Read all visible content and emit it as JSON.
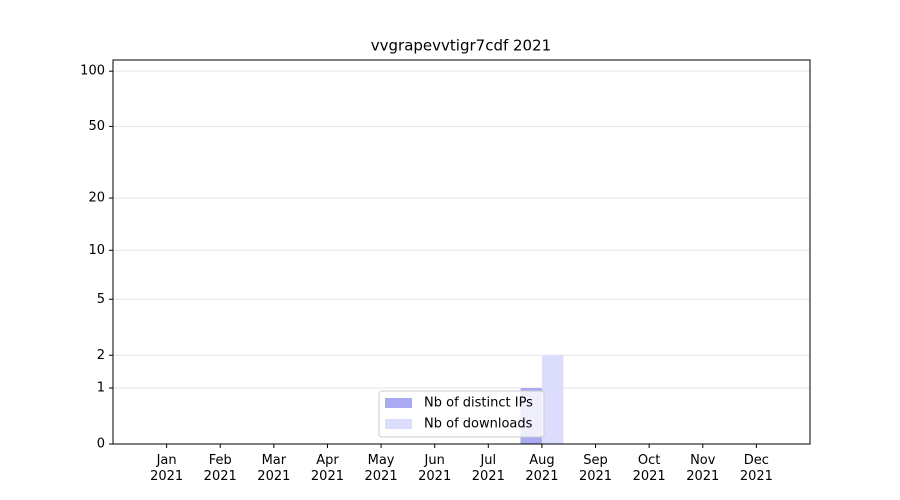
{
  "chart_data": {
    "type": "bar",
    "title": "vvgrapevvtigr7cdf 2021",
    "scale": "log1p",
    "categories": [
      "Jan\n2021",
      "Feb\n2021",
      "Mar\n2021",
      "Apr\n2021",
      "May\n2021",
      "Jun\n2021",
      "Jul\n2021",
      "Aug\n2021",
      "Sep\n2021",
      "Oct\n2021",
      "Nov\n2021",
      "Dec\n2021"
    ],
    "series": [
      {
        "name": "Nb of distinct IPs",
        "color": "#aaaaf2",
        "values": [
          0,
          0,
          0,
          0,
          0,
          0,
          0,
          1,
          0,
          0,
          0,
          0
        ]
      },
      {
        "name": "Nb of downloads",
        "color": "#dcdcfc",
        "values": [
          0,
          0,
          0,
          0,
          0,
          0,
          0,
          2,
          0,
          0,
          0,
          0
        ]
      }
    ],
    "ylim": [
      0,
      115
    ],
    "yticks": [
      0,
      1,
      2,
      5,
      10,
      20,
      50,
      100
    ],
    "grid": true,
    "legend": "lower center"
  }
}
